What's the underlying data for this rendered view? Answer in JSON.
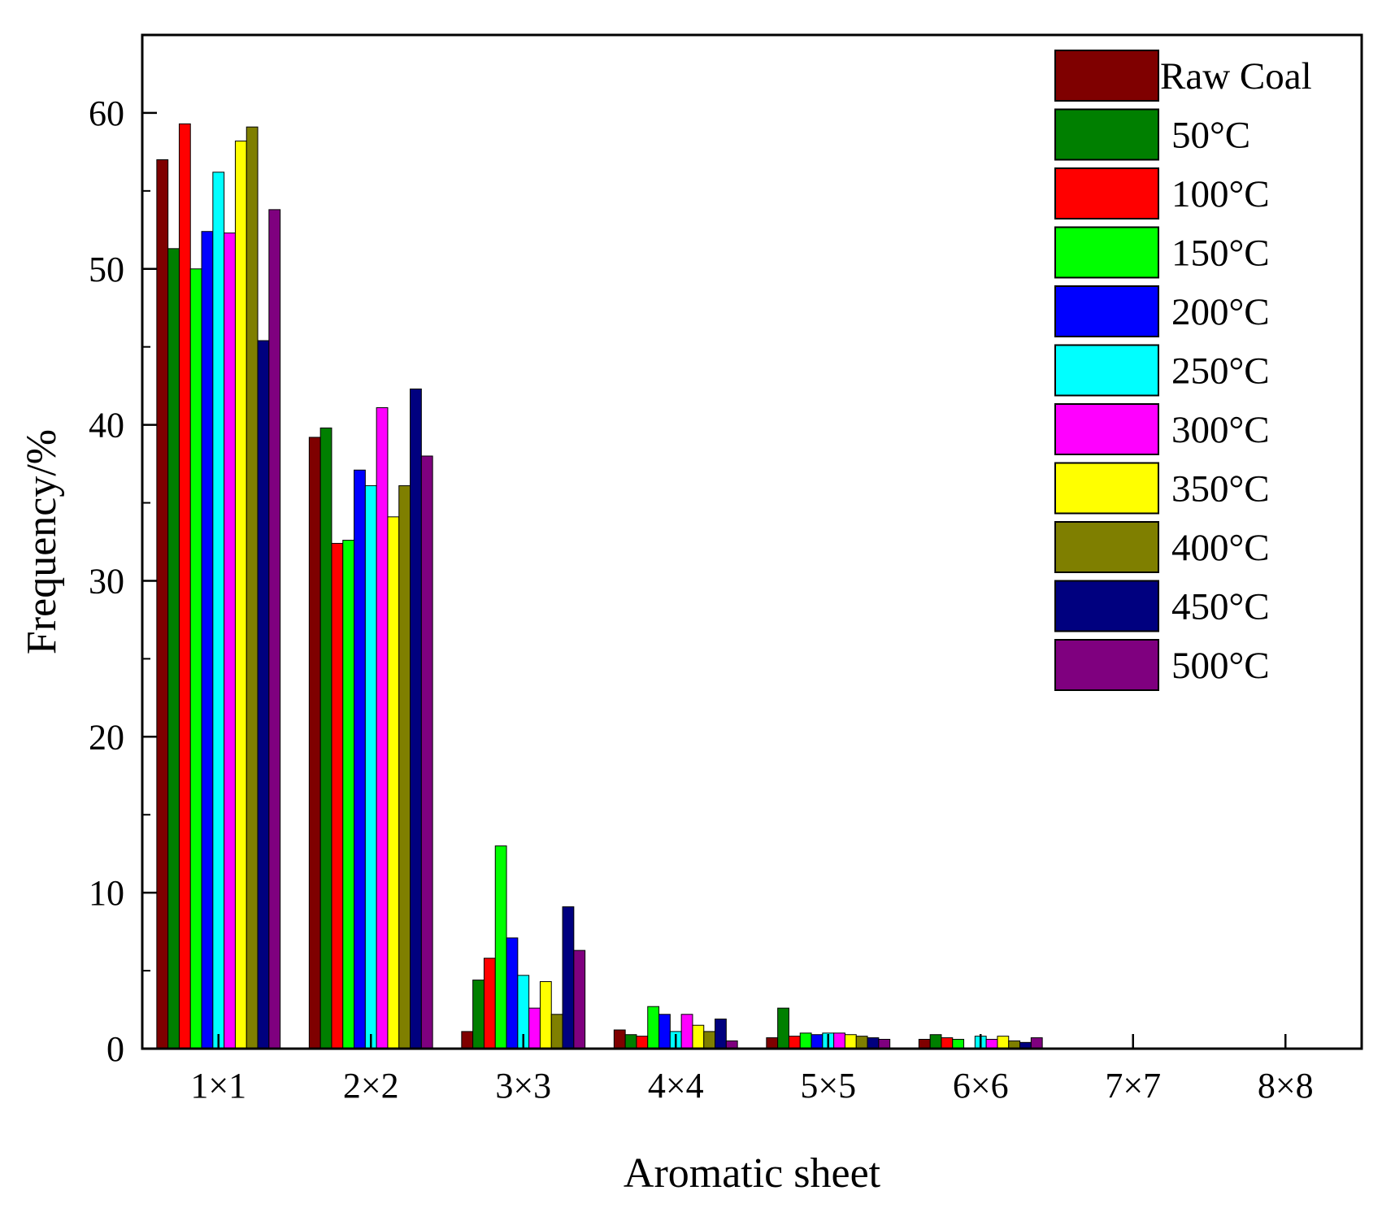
{
  "chart_data": {
    "type": "bar",
    "title": "",
    "xlabel": "Aromatic sheet",
    "ylabel": "Frequency/%",
    "ylim": [
      0,
      65
    ],
    "yticks": [
      0,
      10,
      20,
      30,
      40,
      50,
      60
    ],
    "grid": false,
    "legend_position": "top-right",
    "categories": [
      "1×1",
      "2×2",
      "3×3",
      "4×4",
      "5×5",
      "6×6",
      "7×7",
      "8×8"
    ],
    "series": [
      {
        "name": "Raw Coal",
        "color": "#7f0000",
        "values": [
          57.0,
          39.2,
          1.1,
          1.2,
          0.7,
          0.6,
          0,
          0
        ]
      },
      {
        "name": "50°C",
        "color": "#007f00",
        "values": [
          51.3,
          39.8,
          4.4,
          0.9,
          2.6,
          0.9,
          0,
          0
        ]
      },
      {
        "name": "100°C",
        "color": "#ff0000",
        "values": [
          59.3,
          32.4,
          5.8,
          0.8,
          0.8,
          0.7,
          0,
          0
        ]
      },
      {
        "name": "150°C",
        "color": "#00ff00",
        "values": [
          50.0,
          32.6,
          13.0,
          2.7,
          1.0,
          0.6,
          0,
          0
        ]
      },
      {
        "name": "200°C",
        "color": "#0000ff",
        "values": [
          52.4,
          37.1,
          7.1,
          2.2,
          0.9,
          0.0,
          0,
          0
        ]
      },
      {
        "name": "250°C",
        "color": "#00ffff",
        "values": [
          56.2,
          36.1,
          4.7,
          1.1,
          1.0,
          0.8,
          0,
          0
        ]
      },
      {
        "name": "300°C",
        "color": "#ff00ff",
        "values": [
          52.3,
          41.1,
          2.6,
          2.2,
          1.0,
          0.6,
          0,
          0
        ]
      },
      {
        "name": "350°C",
        "color": "#ffff00",
        "values": [
          58.2,
          34.1,
          4.3,
          1.5,
          0.9,
          0.8,
          0,
          0
        ]
      },
      {
        "name": "400°C",
        "color": "#7f7f00",
        "values": [
          59.1,
          36.1,
          2.2,
          1.1,
          0.8,
          0.5,
          0,
          0
        ]
      },
      {
        "name": "450°C",
        "color": "#00007f",
        "values": [
          45.4,
          42.3,
          9.1,
          1.9,
          0.7,
          0.4,
          0,
          0
        ]
      },
      {
        "name": "500°C",
        "color": "#7f007f",
        "values": [
          53.8,
          38.0,
          6.3,
          0.5,
          0.6,
          0.7,
          0,
          0
        ]
      }
    ]
  }
}
